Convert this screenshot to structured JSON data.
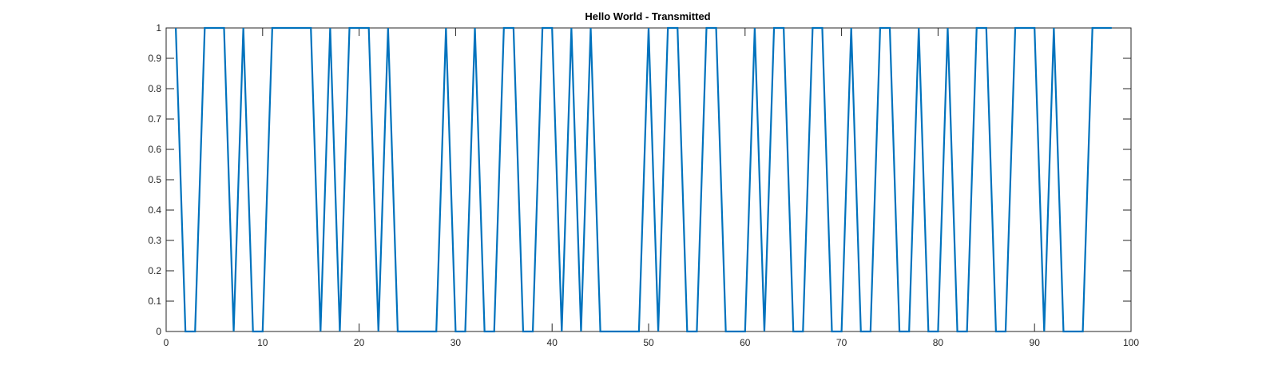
{
  "chart_data": {
    "type": "line",
    "title": "Hello World - Transmitted",
    "xlabel": "",
    "ylabel": "",
    "xlim": [
      0,
      100
    ],
    "ylim": [
      0,
      1
    ],
    "grid": false,
    "legend": "none",
    "x_ticks": [
      0,
      10,
      20,
      30,
      40,
      50,
      60,
      70,
      80,
      90,
      100
    ],
    "x_tick_labels": [
      "0",
      "10",
      "20",
      "30",
      "40",
      "50",
      "60",
      "70",
      "80",
      "90",
      "100"
    ],
    "y_ticks": [
      0,
      0.1,
      0.2,
      0.3,
      0.4,
      0.5,
      0.6,
      0.7,
      0.8,
      0.9,
      1
    ],
    "y_tick_labels": [
      "0",
      "0.1",
      "0.2",
      "0.3",
      "0.4",
      "0.5",
      "0.6",
      "0.7",
      "0.8",
      "0.9",
      "1"
    ],
    "series": [
      {
        "color": "#0072BD",
        "x": [
          1,
          2,
          3,
          4,
          5,
          6,
          7,
          8,
          9,
          10,
          11,
          12,
          13,
          14,
          15,
          16,
          17,
          18,
          19,
          20,
          21,
          22,
          23,
          24,
          25,
          26,
          27,
          28,
          29,
          30,
          31,
          32,
          33,
          34,
          35,
          36,
          37,
          38,
          39,
          40,
          41,
          42,
          43,
          44,
          45,
          46,
          47,
          48,
          49,
          50,
          51,
          52,
          53,
          54,
          55,
          56,
          57,
          58,
          59,
          60,
          61,
          62,
          63,
          64,
          65,
          66,
          67,
          68,
          69,
          70,
          71,
          72,
          73,
          74,
          75,
          76,
          77,
          78,
          79,
          80,
          81,
          82,
          83,
          84,
          85,
          86,
          87,
          88,
          89,
          90,
          91,
          92,
          93,
          94,
          95,
          96,
          97,
          98
        ],
        "values": [
          1,
          0,
          0,
          1,
          1,
          1,
          0,
          1,
          0,
          0,
          1,
          1,
          1,
          1,
          1,
          0,
          1,
          0,
          1,
          1,
          1,
          0,
          1,
          0,
          0,
          0,
          0,
          0,
          1,
          0,
          0,
          1,
          0,
          0,
          1,
          1,
          0,
          0,
          1,
          1,
          0,
          1,
          0,
          1,
          0,
          0,
          0,
          0,
          0,
          1,
          0,
          1,
          1,
          0,
          0,
          1,
          1,
          0,
          0,
          0,
          1,
          0,
          1,
          1,
          0,
          0,
          1,
          1,
          0,
          0,
          1,
          0,
          0,
          1,
          1,
          0,
          0,
          1,
          0,
          0,
          1,
          0,
          0,
          1,
          1,
          0,
          0,
          1,
          1,
          1,
          0,
          1,
          0,
          0,
          0,
          1,
          1,
          1
        ]
      }
    ]
  }
}
